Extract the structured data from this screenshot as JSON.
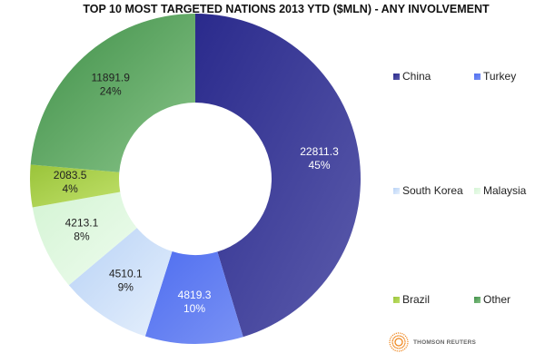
{
  "chart_data": {
    "type": "pie",
    "donut": true,
    "title": "TOP 10 MOST TARGETED NATIONS 2013 YTD ($MLN) - ANY INVOLVEMENT",
    "legend_position": "right",
    "slices": [
      {
        "label": "China",
        "value": 22811.3,
        "percent": "45%",
        "value_label": "22811.3",
        "color": "#2a2a8c",
        "color2": "#5c5cac"
      },
      {
        "label": "Turkey",
        "value": 4819.3,
        "percent": "10%",
        "value_label": "4819.3",
        "color": "#4f6ef0",
        "color2": "#7a92f4"
      },
      {
        "label": "South Korea",
        "value": 4510.1,
        "percent": "9%",
        "value_label": "4510.1",
        "color": "#b8d2f6",
        "color2": "#e6f0fc"
      },
      {
        "label": "Malaysia",
        "value": 4213.1,
        "percent": "8%",
        "value_label": "4213.1",
        "color": "#d4f4d4",
        "color2": "#eefcee"
      },
      {
        "label": "Brazil",
        "value": 2083.5,
        "percent": "4%",
        "value_label": "2083.5",
        "color": "#9ac43a",
        "color2": "#c0e06a"
      },
      {
        "label": "Other",
        "value": 11891.9,
        "percent": "24%",
        "value_label": "11891.9",
        "color": "#3f8f48",
        "color2": "#88c488"
      }
    ]
  },
  "logo": {
    "text": "THOMSON REUTERS",
    "color": "#f08a24"
  }
}
